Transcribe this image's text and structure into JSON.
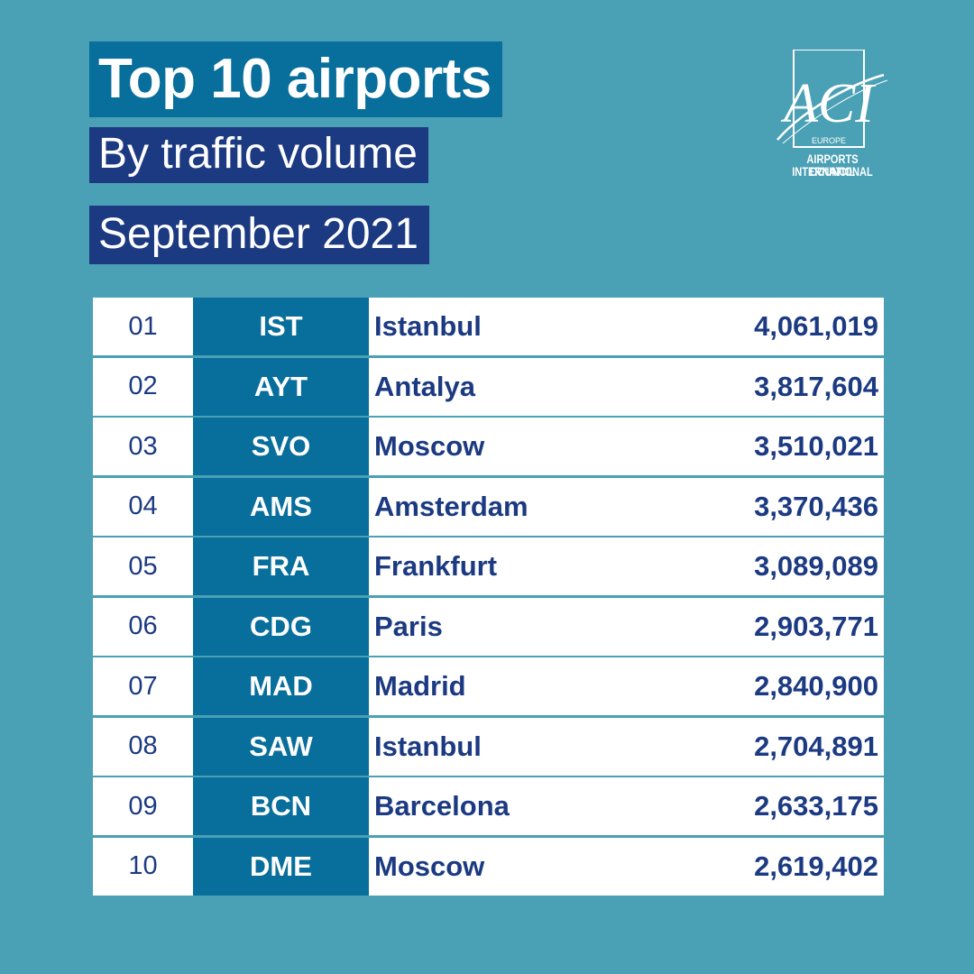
{
  "header": {
    "title": "Top 10 airports",
    "subtitle": "By traffic volume",
    "period": "September 2021"
  },
  "logo": {
    "mark": "ACI",
    "region": "EUROPE",
    "line1": "AIRPORTS COUNCIL",
    "line2": "INTERNATIONAL"
  },
  "rows": [
    {
      "rank": "01",
      "code": "IST",
      "city": "Istanbul",
      "passengers": "4,061,019"
    },
    {
      "rank": "02",
      "code": "AYT",
      "city": "Antalya",
      "passengers": "3,817,604"
    },
    {
      "rank": "03",
      "code": "SVO",
      "city": "Moscow",
      "passengers": "3,510,021"
    },
    {
      "rank": "04",
      "code": "AMS",
      "city": "Amsterdam",
      "passengers": "3,370,436"
    },
    {
      "rank": "05",
      "code": "FRA",
      "city": "Frankfurt",
      "passengers": "3,089,089"
    },
    {
      "rank": "06",
      "code": "CDG",
      "city": "Paris",
      "passengers": "2,903,771"
    },
    {
      "rank": "07",
      "code": "MAD",
      "city": "Madrid",
      "passengers": "2,840,900"
    },
    {
      "rank": "08",
      "code": "SAW",
      "city": "Istanbul",
      "passengers": "2,704,891"
    },
    {
      "rank": "09",
      "code": "BCN",
      "city": "Barcelona",
      "passengers": "2,633,175"
    },
    {
      "rank": "10",
      "code": "DME",
      "city": "Moscow",
      "passengers": "2,619,402"
    }
  ],
  "colors": {
    "background": "#4aa0b4",
    "title_box": "#086e9b",
    "navy": "#1c3a82",
    "code_column": "#086e9b",
    "row_background": "#ffffff"
  }
}
